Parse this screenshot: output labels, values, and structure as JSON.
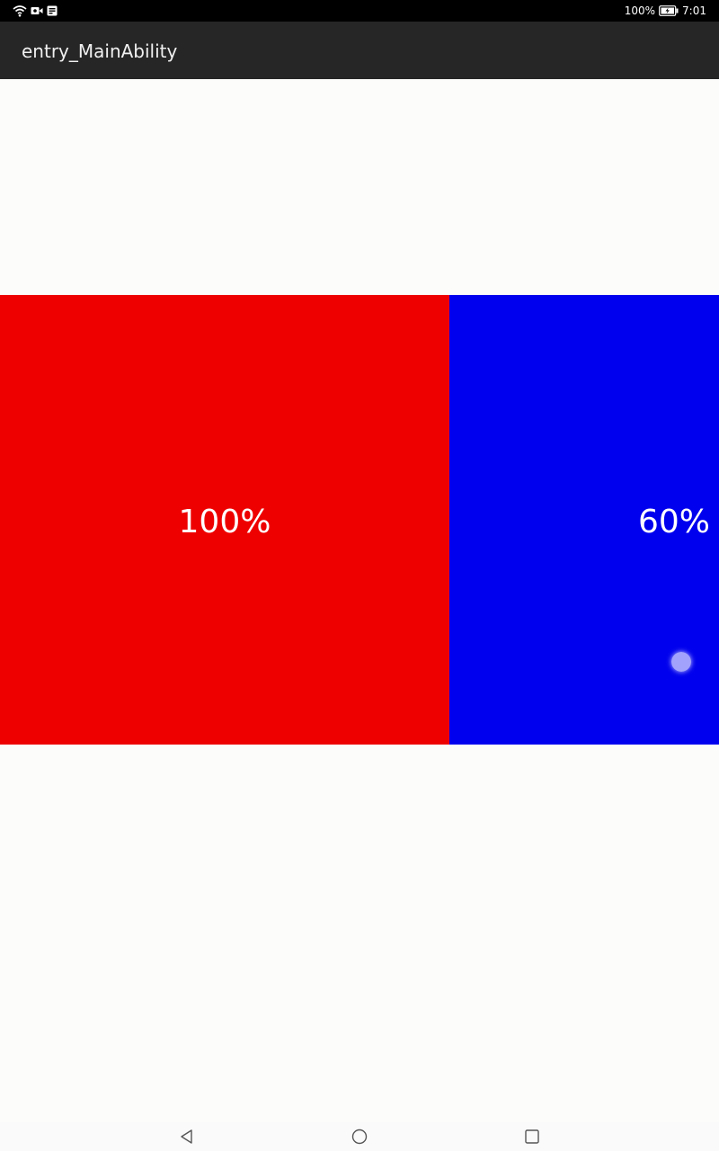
{
  "status_bar": {
    "battery_percent": "100%",
    "time": "7:01",
    "icons": [
      "wifi-icon",
      "video-record-icon",
      "notification-icon",
      "battery-charging-icon"
    ]
  },
  "app_bar": {
    "title": "entry_MainAbility"
  },
  "panels": [
    {
      "label": "100%",
      "color": "#ee0000"
    },
    {
      "label": "60%",
      "color": "#0000ee"
    }
  ],
  "nav_bar": {
    "buttons": [
      "back-icon",
      "home-icon",
      "recents-icon"
    ]
  },
  "colors": {
    "status_bar_bg": "#000000",
    "title_bar_bg": "#262626",
    "content_bg": "#fcfcfa"
  }
}
